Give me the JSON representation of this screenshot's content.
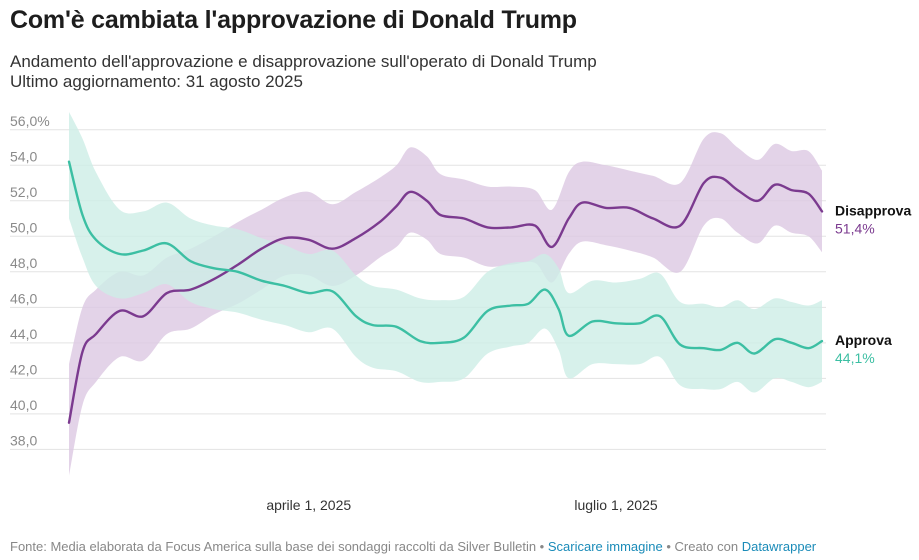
{
  "header": {
    "title": "Com'è cambiata l'approvazione di Donald Trump",
    "subtitle_line1": "Andamento dell'approvazione e disapprovazione sull'operato di Donald Trump",
    "subtitle_line2": "Ultimo aggiornamento: 31 agosto 2025"
  },
  "footer": {
    "source": "Fonte: Media elaborata da Focus America sulla base dei sondaggi raccolti da Silver Bulletin • ",
    "download_link": "Scaricare immagine",
    "created_with": " • Creato con ",
    "tool_link": "Datawrapper"
  },
  "colors": {
    "approve": "#3cbfa3",
    "approve_band": "#cdeee6",
    "disapprove": "#7b3a8f",
    "disapprove_band": "#dcc8e2",
    "grid": "#e3e3e3"
  },
  "chart_data": {
    "type": "line",
    "title": "Com'è cambiata l'approvazione di Donald Trump",
    "x_start": "2025-01-20",
    "x_end": "2025-08-31",
    "x_ticks": [
      {
        "date": "2025-04-01",
        "label": "aprile 1, 2025"
      },
      {
        "date": "2025-07-01",
        "label": "luglio 1, 2025"
      }
    ],
    "y_ticks": [
      "38,0",
      "40,0",
      "42,0",
      "44,0",
      "46,0",
      "48,0",
      "50,0",
      "52,0",
      "54,0",
      "56,0%"
    ],
    "ylim": [
      36.5,
      57
    ],
    "grid": true,
    "legend": "direct labels at line ends (right)",
    "series": [
      {
        "name": "Disapprova",
        "end_label": "51,4%",
        "points": [
          [
            "2025-01-20",
            39.5,
            36.5,
            42.8
          ],
          [
            "2025-01-24",
            43.5,
            40.5,
            46.0
          ],
          [
            "2025-01-28",
            44.5,
            41.8,
            47.0
          ],
          [
            "2025-02-04",
            45.8,
            43.2,
            48.0
          ],
          [
            "2025-02-11",
            45.5,
            43.0,
            47.8
          ],
          [
            "2025-02-18",
            46.8,
            44.5,
            48.8
          ],
          [
            "2025-02-25",
            47.0,
            44.8,
            49.3
          ],
          [
            "2025-03-04",
            47.6,
            45.6,
            50.0
          ],
          [
            "2025-03-11",
            48.4,
            46.2,
            50.8
          ],
          [
            "2025-03-18",
            49.3,
            47.0,
            51.5
          ],
          [
            "2025-03-25",
            49.9,
            47.8,
            52.2
          ],
          [
            "2025-04-01",
            49.8,
            47.8,
            52.5
          ],
          [
            "2025-04-08",
            49.3,
            47.2,
            51.8
          ],
          [
            "2025-04-15",
            49.9,
            47.8,
            52.5
          ],
          [
            "2025-04-22",
            50.8,
            48.8,
            53.3
          ],
          [
            "2025-04-27",
            51.7,
            49.4,
            54.0
          ],
          [
            "2025-05-01",
            52.5,
            50.2,
            55.0
          ],
          [
            "2025-05-06",
            52.0,
            49.8,
            54.5
          ],
          [
            "2025-05-10",
            51.2,
            49.0,
            53.5
          ],
          [
            "2025-05-17",
            51.0,
            48.8,
            53.2
          ],
          [
            "2025-05-24",
            50.5,
            48.3,
            52.8
          ],
          [
            "2025-05-31",
            50.5,
            48.4,
            52.8
          ],
          [
            "2025-06-07",
            50.6,
            48.5,
            52.6
          ],
          [
            "2025-06-12",
            49.4,
            47.4,
            51.5
          ],
          [
            "2025-06-17",
            51.0,
            49.0,
            53.6
          ],
          [
            "2025-06-21",
            51.9,
            49.7,
            54.2
          ],
          [
            "2025-06-28",
            51.6,
            49.5,
            54.0
          ],
          [
            "2025-07-05",
            51.6,
            49.2,
            53.7
          ],
          [
            "2025-07-12",
            51.0,
            48.8,
            53.4
          ],
          [
            "2025-07-20",
            50.6,
            48.0,
            53.0
          ],
          [
            "2025-07-27",
            53.0,
            50.6,
            55.5
          ],
          [
            "2025-08-01",
            53.3,
            51.0,
            55.8
          ],
          [
            "2025-08-06",
            52.6,
            50.2,
            55.0
          ],
          [
            "2025-08-12",
            52.0,
            49.6,
            54.3
          ],
          [
            "2025-08-17",
            52.9,
            50.6,
            55.2
          ],
          [
            "2025-08-22",
            52.6,
            50.2,
            54.8
          ],
          [
            "2025-08-27",
            52.4,
            50.0,
            54.8
          ],
          [
            "2025-08-31",
            51.4,
            49.1,
            53.7
          ]
        ]
      },
      {
        "name": "Approva",
        "end_label": "44,1%",
        "points": [
          [
            "2025-01-20",
            54.2,
            51.0,
            57.0
          ],
          [
            "2025-01-24",
            51.2,
            48.8,
            55.5
          ],
          [
            "2025-01-28",
            49.8,
            47.2,
            53.6
          ],
          [
            "2025-02-04",
            49.0,
            46.5,
            51.5
          ],
          [
            "2025-02-11",
            49.2,
            46.8,
            51.4
          ],
          [
            "2025-02-18",
            49.6,
            47.3,
            51.9
          ],
          [
            "2025-02-25",
            48.6,
            46.3,
            51.0
          ],
          [
            "2025-03-04",
            48.2,
            45.9,
            50.6
          ],
          [
            "2025-03-11",
            48.0,
            45.7,
            50.4
          ],
          [
            "2025-03-18",
            47.5,
            45.3,
            49.9
          ],
          [
            "2025-03-25",
            47.2,
            45.0,
            49.5
          ],
          [
            "2025-04-01",
            46.8,
            44.6,
            49.0
          ],
          [
            "2025-04-08",
            46.9,
            44.8,
            49.2
          ],
          [
            "2025-04-15",
            45.5,
            43.2,
            47.8
          ],
          [
            "2025-04-20",
            45.0,
            42.6,
            47.2
          ],
          [
            "2025-04-27",
            44.9,
            42.4,
            47.0
          ],
          [
            "2025-05-04",
            44.1,
            41.8,
            46.5
          ],
          [
            "2025-05-10",
            44.0,
            41.8,
            46.4
          ],
          [
            "2025-05-17",
            44.3,
            42.0,
            46.6
          ],
          [
            "2025-05-24",
            45.8,
            43.4,
            48.0
          ],
          [
            "2025-05-31",
            46.1,
            43.8,
            48.5
          ],
          [
            "2025-06-05",
            46.2,
            44.0,
            48.6
          ],
          [
            "2025-06-10",
            47.0,
            44.8,
            49.0
          ],
          [
            "2025-06-14",
            45.9,
            43.6,
            48.2
          ],
          [
            "2025-06-17",
            44.4,
            42.0,
            46.8
          ],
          [
            "2025-06-24",
            45.2,
            42.8,
            47.5
          ],
          [
            "2025-07-01",
            45.1,
            42.8,
            47.4
          ],
          [
            "2025-07-08",
            45.1,
            42.8,
            47.6
          ],
          [
            "2025-07-14",
            45.5,
            43.2,
            47.9
          ],
          [
            "2025-07-20",
            43.9,
            41.6,
            46.3
          ],
          [
            "2025-07-27",
            43.7,
            41.4,
            46.2
          ],
          [
            "2025-08-01",
            43.6,
            41.4,
            46.0
          ],
          [
            "2025-08-06",
            44.0,
            41.8,
            46.4
          ],
          [
            "2025-08-11",
            43.4,
            41.2,
            45.9
          ],
          [
            "2025-08-17",
            44.2,
            42.0,
            46.5
          ],
          [
            "2025-08-22",
            44.0,
            41.8,
            46.3
          ],
          [
            "2025-08-27",
            43.7,
            41.5,
            46.1
          ],
          [
            "2025-08-31",
            44.1,
            41.8,
            46.4
          ]
        ]
      }
    ]
  }
}
